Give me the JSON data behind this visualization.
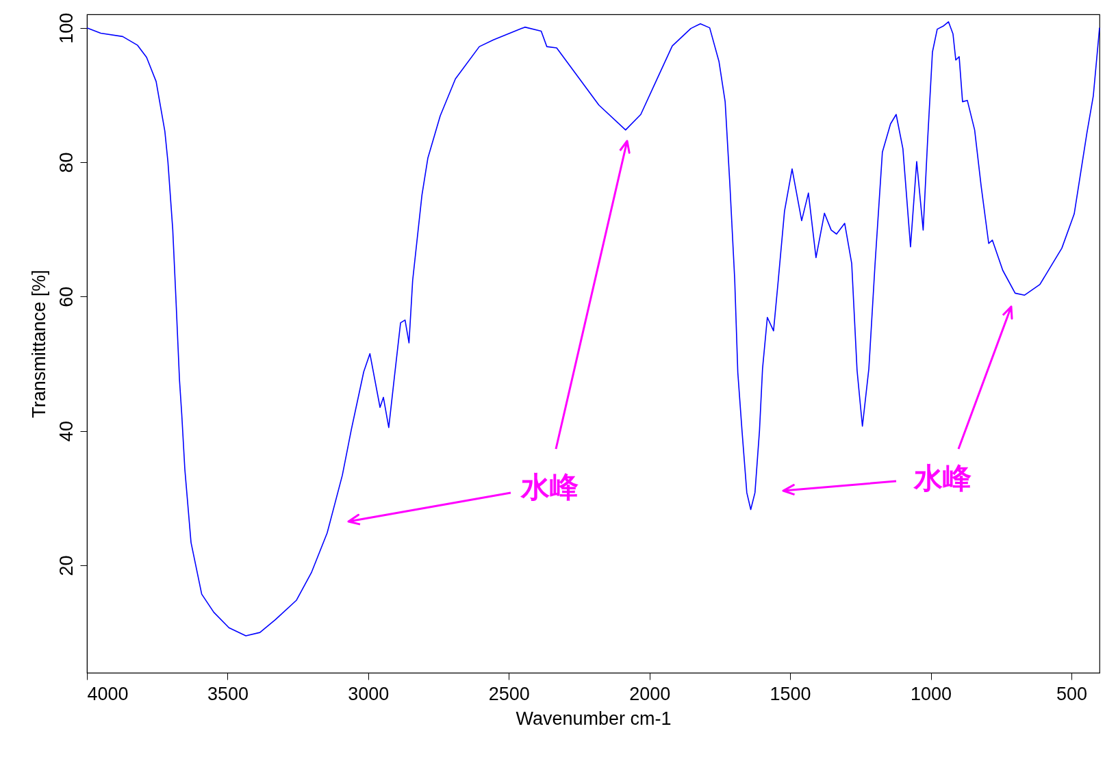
{
  "chart_data": {
    "type": "line",
    "xlabel": "Wavenumber cm-1",
    "ylabel": "Transmittance [%]",
    "xlim": [
      4000,
      400
    ],
    "ylim": [
      4,
      102
    ],
    "xticks": [
      4000,
      3500,
      3000,
      2500,
      2000,
      1500,
      1000,
      500
    ],
    "yticks": [
      20,
      40,
      60,
      80,
      100
    ],
    "grid": false,
    "marker": "none",
    "line_style": "solid",
    "series": [
      {
        "color": "#0000ff",
        "x": [
          4000,
          3951,
          3873,
          3820,
          3788,
          3754,
          3723,
          3712,
          3695,
          3684,
          3671,
          3663,
          3652,
          3630,
          3592,
          3549,
          3495,
          3435,
          3385,
          3330,
          3255,
          3202,
          3146,
          3092,
          3060,
          3016,
          2994,
          2958,
          2946,
          2927,
          2907,
          2885,
          2869,
          2855,
          2842,
          2809,
          2788,
          2744,
          2690,
          2605,
          2555,
          2443,
          2385,
          2365,
          2330,
          2180,
          2085,
          2031,
          1975,
          1919,
          1853,
          1819,
          1786,
          1753,
          1731,
          1714,
          1697,
          1686,
          1671,
          1654,
          1640,
          1625,
          1609,
          1598,
          1581,
          1559,
          1542,
          1520,
          1493,
          1459,
          1435,
          1408,
          1378,
          1354,
          1335,
          1306,
          1281,
          1262,
          1243,
          1220,
          1198,
          1172,
          1143,
          1123,
          1099,
          1072,
          1050,
          1027,
          1011,
          994,
          977,
          954,
          937,
          921,
          911,
          899,
          887,
          870,
          844,
          821,
          794,
          781,
          744,
          700,
          667,
          612,
          534,
          490,
          445,
          422,
          400
        ],
        "values": [
          100,
          99.2,
          98.7,
          97.4,
          95.6,
          92,
          84.6,
          80,
          70,
          60,
          47.6,
          42.5,
          34.3,
          23.4,
          15.7,
          13,
          10.7,
          9.5,
          10,
          11.9,
          14.8,
          18.9,
          24.8,
          33.4,
          40.2,
          48.8,
          51.5,
          43.5,
          45,
          40.5,
          48,
          56.1,
          56.5,
          53.1,
          62.4,
          75.1,
          80.6,
          86.9,
          92.4,
          97.2,
          98.2,
          100.1,
          99.5,
          97.2,
          97,
          88.5,
          84.8,
          87.1,
          92.2,
          97.3,
          99.9,
          100.6,
          100,
          95,
          89,
          76.5,
          62.5,
          48.7,
          40,
          30.8,
          28.3,
          30.8,
          40,
          49.3,
          56.9,
          54.9,
          62.5,
          72.7,
          79,
          71.3,
          75.4,
          65.8,
          72.4,
          69.9,
          69.3,
          70.9,
          64.9,
          49,
          40.7,
          49.3,
          64.9,
          81.5,
          85.7,
          87.1,
          82,
          67.4,
          80.1,
          69.9,
          83.4,
          96.4,
          99.8,
          100.3,
          100.9,
          99.1,
          95.2,
          95.7,
          89,
          89.2,
          84.8,
          76.5,
          67.9,
          68.4,
          63.9,
          60.5,
          60.2,
          61.8,
          67.2,
          72.3,
          84.3,
          89.9,
          100
        ]
      }
    ],
    "annotations": [
      "水峰",
      "水峰"
    ]
  }
}
